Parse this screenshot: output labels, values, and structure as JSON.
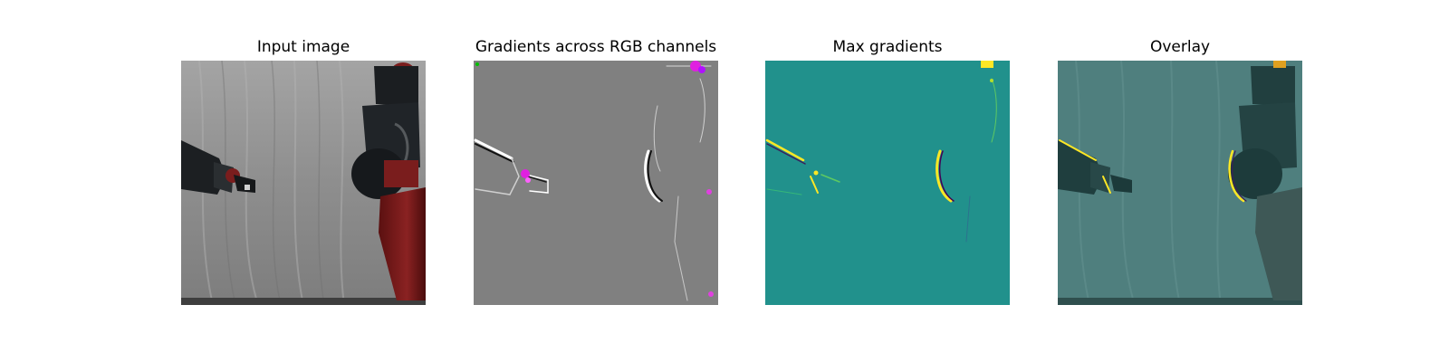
{
  "figure": {
    "panels": [
      {
        "title": "Input image",
        "image": "robot-arm-photo"
      },
      {
        "title": "Gradients across RGB channels",
        "image": "rgb-gradient-map"
      },
      {
        "title": "Max gradients",
        "image": "max-gradient-heatmap"
      },
      {
        "title": "Overlay",
        "image": "heatmap-overlay"
      }
    ],
    "colors": {
      "backdrop_gray": "#8d8d8d",
      "gradient_gray": "#808080",
      "heatmap_teal": "#21918c",
      "overlay_teal": "#4f7f7e",
      "robot_red": "#7a1a1a",
      "robot_dark": "#1f2326",
      "highlight_yellow": "#fde725",
      "highlight_magenta": "#e020e0"
    }
  }
}
